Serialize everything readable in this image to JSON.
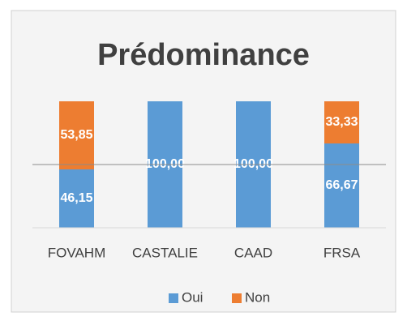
{
  "chart_data": {
    "type": "stacked_bar",
    "title": "Prédominance",
    "categories": [
      "FOVAHM",
      "CASTALIE",
      "CAAD",
      "FRSA"
    ],
    "series": [
      {
        "name": "Oui",
        "color": "#5b9bd5",
        "values": [
          46.15,
          100,
          100,
          66.67
        ],
        "value_labels": [
          "46,15",
          "100,00",
          "100,00",
          "66,67"
        ]
      },
      {
        "name": "Non",
        "color": "#ed7d31",
        "values": [
          53.85,
          0,
          0,
          33.33
        ],
        "value_labels": [
          "53,85",
          null,
          null,
          "33,33"
        ]
      }
    ],
    "ylim": [
      0,
      100
    ],
    "yticks": [
      50
    ],
    "grid": true,
    "legend": "bottom"
  }
}
